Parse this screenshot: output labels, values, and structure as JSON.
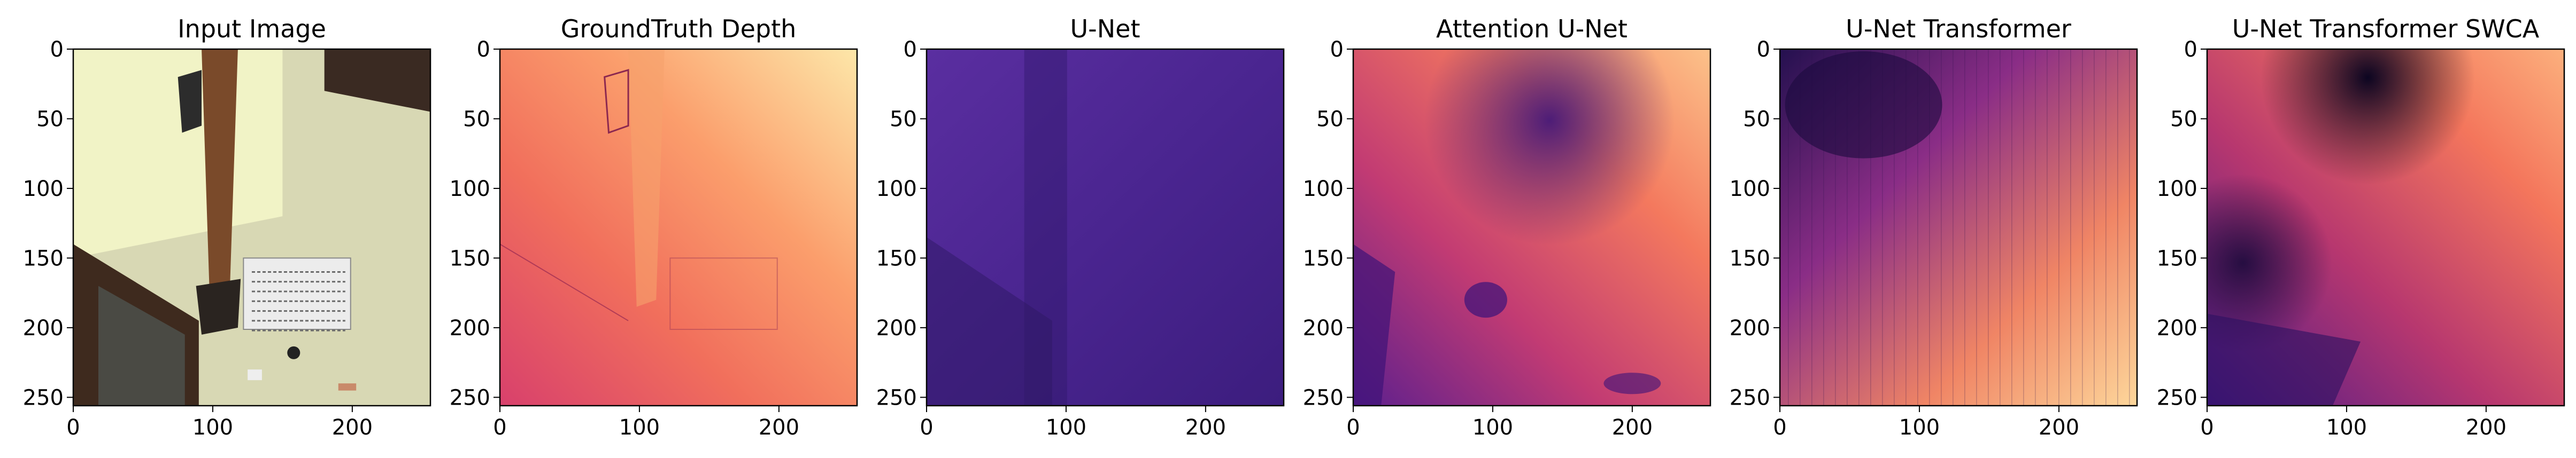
{
  "figure": {
    "panels": [
      {
        "title": "Input Image",
        "kind": "photo"
      },
      {
        "title": "GroundTruth Depth",
        "kind": "gt"
      },
      {
        "title": "U-Net",
        "kind": "unet"
      },
      {
        "title": "Attention U-Net",
        "kind": "attn"
      },
      {
        "title": "U-Net Transformer",
        "kind": "transformer"
      },
      {
        "title": "U-Net Transformer SWCA",
        "kind": "swca"
      }
    ],
    "x_ticks": [
      "0",
      "100",
      "200"
    ],
    "y_ticks": [
      "0",
      "50",
      "100",
      "150",
      "200",
      "250"
    ],
    "x_tick_values": [
      0,
      100,
      200
    ],
    "y_tick_values": [
      0,
      50,
      100,
      150,
      200,
      250
    ],
    "image_extent": [
      0,
      256
    ],
    "colormap": "magma",
    "colors": {
      "wall": "#d8d8b4",
      "wall_light": "#f1f3c6",
      "beam": "#7a4a2a",
      "door_frame": "#3e2a1e",
      "magma_dark": "#1a0b3e",
      "magma_mid": "#b5367a",
      "magma_light": "#fde3a7"
    }
  }
}
